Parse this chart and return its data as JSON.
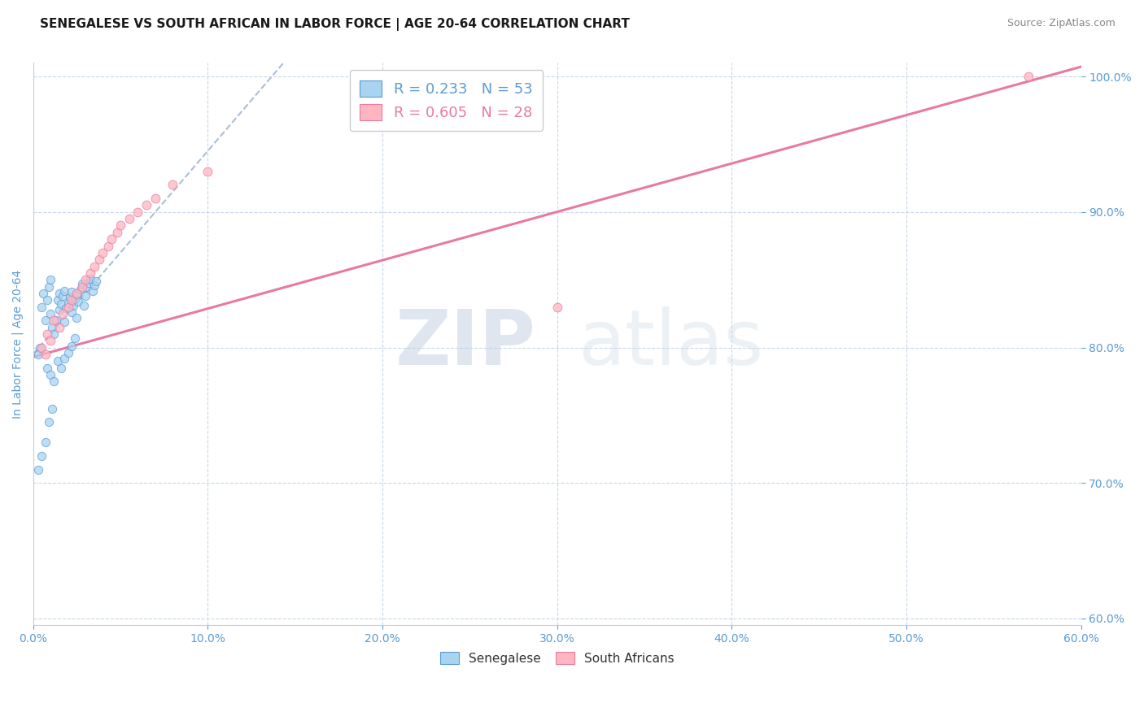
{
  "title": "SENEGALESE VS SOUTH AFRICAN IN LABOR FORCE | AGE 20-64 CORRELATION CHART",
  "source": "Source: ZipAtlas.com",
  "xlabel": "",
  "ylabel": "In Labor Force | Age 20-64",
  "xlim": [
    0.0,
    0.6
  ],
  "ylim": [
    0.595,
    1.01
  ],
  "xticks": [
    0.0,
    0.1,
    0.2,
    0.3,
    0.4,
    0.5,
    0.6
  ],
  "yticks": [
    0.6,
    0.7,
    0.8,
    0.9,
    1.0
  ],
  "xtick_labels": [
    "0.0%",
    "10.0%",
    "20.0%",
    "30.0%",
    "40.0%",
    "50.0%",
    "60.0%"
  ],
  "ytick_labels": [
    "60.0%",
    "70.0%",
    "80.0%",
    "90.0%",
    "100.0%"
  ],
  "senegalese_x": [
    0.005,
    0.006,
    0.007,
    0.008,
    0.009,
    0.01,
    0.01,
    0.011,
    0.012,
    0.013,
    0.014,
    0.015,
    0.015,
    0.016,
    0.017,
    0.018,
    0.018,
    0.019,
    0.02,
    0.021,
    0.022,
    0.022,
    0.023,
    0.024,
    0.025,
    0.025,
    0.026,
    0.027,
    0.028,
    0.029,
    0.03,
    0.031,
    0.032,
    0.033,
    0.034,
    0.035,
    0.036,
    0.004,
    0.003,
    0.008,
    0.01,
    0.012,
    0.014,
    0.016,
    0.018,
    0.02,
    0.022,
    0.024,
    0.003,
    0.005,
    0.007,
    0.009,
    0.011
  ],
  "senegalese_y": [
    0.83,
    0.84,
    0.82,
    0.835,
    0.845,
    0.85,
    0.825,
    0.815,
    0.81,
    0.82,
    0.835,
    0.84,
    0.828,
    0.832,
    0.838,
    0.842,
    0.819,
    0.829,
    0.833,
    0.837,
    0.841,
    0.826,
    0.831,
    0.836,
    0.839,
    0.822,
    0.834,
    0.843,
    0.847,
    0.831,
    0.838,
    0.845,
    0.848,
    0.851,
    0.842,
    0.846,
    0.849,
    0.8,
    0.795,
    0.785,
    0.78,
    0.775,
    0.79,
    0.785,
    0.792,
    0.796,
    0.801,
    0.807,
    0.71,
    0.72,
    0.73,
    0.745,
    0.755
  ],
  "south_african_x": [
    0.005,
    0.007,
    0.008,
    0.01,
    0.012,
    0.015,
    0.017,
    0.02,
    0.022,
    0.025,
    0.028,
    0.03,
    0.033,
    0.035,
    0.038,
    0.04,
    0.043,
    0.045,
    0.048,
    0.05,
    0.055,
    0.06,
    0.065,
    0.07,
    0.08,
    0.1,
    0.3,
    0.57
  ],
  "south_african_y": [
    0.8,
    0.795,
    0.81,
    0.805,
    0.82,
    0.815,
    0.825,
    0.83,
    0.835,
    0.84,
    0.845,
    0.85,
    0.855,
    0.86,
    0.865,
    0.87,
    0.875,
    0.88,
    0.885,
    0.89,
    0.895,
    0.9,
    0.905,
    0.91,
    0.92,
    0.93,
    0.83,
    1.0
  ],
  "senegalese_color": "#a8d4f0",
  "south_african_color": "#ffb6c1",
  "senegalese_edge_color": "#5b9bd5",
  "south_african_edge_color": "#e87aa0",
  "trend_senegalese_color": "#a0b8d0",
  "trend_south_african_color": "#e87aa0",
  "senegalese_trend_intercept": 0.795,
  "senegalese_trend_slope": 1.5,
  "south_african_trend_intercept": 0.793,
  "south_african_trend_slope": 0.357,
  "legend_R_senegalese": "R = 0.233",
  "legend_N_senegalese": "N = 53",
  "legend_R_south_african": "R = 0.605",
  "legend_N_south_african": "N = 28",
  "watermark_zip": "ZIP",
  "watermark_atlas": "atlas",
  "axis_color": "#5b9bd5",
  "grid_color": "#c8d8ea",
  "background_color": "#ffffff",
  "title_fontsize": 11,
  "axis_label_fontsize": 10,
  "tick_fontsize": 10,
  "legend_fontsize": 13,
  "scatter_size": 55
}
